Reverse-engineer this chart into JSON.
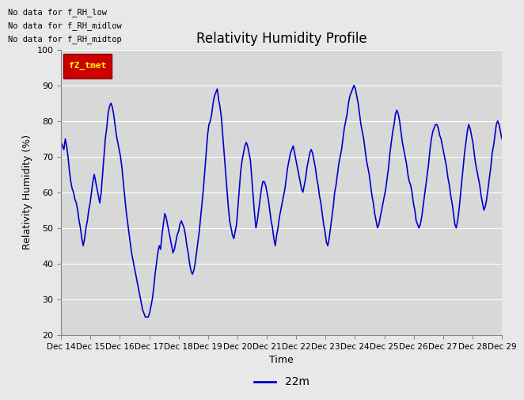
{
  "title": "Relativity Humidity Profile",
  "xlabel": "Time",
  "ylabel": "Relativity Humidity (%)",
  "ylim": [
    20,
    100
  ],
  "yticks": [
    20,
    30,
    40,
    50,
    60,
    70,
    80,
    90,
    100
  ],
  "legend_label": "22m",
  "legend_color": "#0000cc",
  "line_color": "#0000cc",
  "line_width": 1.2,
  "fig_bg_color": "#e8e8e8",
  "plot_bg_color": "#d8d8d8",
  "annotations": [
    "No data for f_RH_low",
    "No data for f_RH_midlow",
    "No data for f_RH_midtop"
  ],
  "legend_box_color": "#cc0000",
  "legend_box_text": "fZ_tmet",
  "x_tick_labels": [
    "Dec 14",
    "Dec 15",
    "Dec 16",
    "Dec 17",
    "Dec 18",
    "Dec 19",
    "Dec 20",
    "Dec 21",
    "Dec 22",
    "Dec 23",
    "Dec 24",
    "Dec 25",
    "Dec 26",
    "Dec 27",
    "Dec 28",
    "Dec 29"
  ],
  "humidity_data": [
    74,
    73,
    72,
    75,
    73,
    70,
    66,
    63,
    61,
    60,
    58,
    57,
    55,
    52,
    50,
    47,
    45,
    47,
    50,
    52,
    55,
    57,
    60,
    63,
    65,
    63,
    61,
    59,
    57,
    60,
    65,
    70,
    75,
    78,
    82,
    84,
    85,
    84,
    82,
    79,
    76,
    74,
    72,
    70,
    67,
    63,
    59,
    55,
    52,
    49,
    46,
    43,
    41,
    39,
    37,
    35,
    33,
    31,
    29,
    27,
    26,
    25,
    25,
    25,
    26,
    28,
    30,
    33,
    37,
    40,
    43,
    45,
    44,
    48,
    51,
    54,
    53,
    51,
    49,
    47,
    45,
    43,
    44,
    46,
    48,
    49,
    51,
    52,
    51,
    50,
    48,
    45,
    43,
    40,
    38,
    37,
    38,
    40,
    43,
    46,
    49,
    53,
    57,
    61,
    66,
    71,
    76,
    79,
    80,
    82,
    85,
    87,
    88,
    89,
    86,
    84,
    81,
    76,
    71,
    66,
    61,
    56,
    52,
    50,
    48,
    47,
    49,
    51,
    56,
    61,
    66,
    69,
    71,
    73,
    74,
    73,
    71,
    69,
    64,
    59,
    54,
    50,
    52,
    55,
    58,
    61,
    63,
    63,
    62,
    60,
    58,
    55,
    52,
    50,
    47,
    45,
    48,
    50,
    53,
    55,
    57,
    59,
    61,
    64,
    67,
    69,
    71,
    72,
    73,
    71,
    69,
    67,
    65,
    63,
    61,
    60,
    62,
    64,
    67,
    69,
    71,
    72,
    71,
    69,
    67,
    64,
    62,
    59,
    57,
    54,
    51,
    49,
    46,
    45,
    47,
    50,
    53,
    56,
    60,
    62,
    65,
    68,
    70,
    72,
    75,
    78,
    80,
    82,
    85,
    87,
    88,
    89,
    90,
    89,
    87,
    85,
    82,
    79,
    77,
    75,
    72,
    69,
    67,
    65,
    62,
    59,
    57,
    54,
    52,
    50,
    51,
    53,
    55,
    57,
    59,
    61,
    64,
    67,
    71,
    74,
    77,
    79,
    82,
    83,
    82,
    80,
    77,
    74,
    72,
    70,
    68,
    65,
    63,
    62,
    60,
    57,
    55,
    52,
    51,
    50,
    51,
    53,
    56,
    59,
    62,
    65,
    68,
    72,
    75,
    77,
    78,
    79,
    79,
    78,
    76,
    75,
    73,
    71,
    69,
    67,
    64,
    62,
    59,
    57,
    54,
    51,
    50,
    52,
    55,
    59,
    63,
    67,
    71,
    74,
    77,
    79,
    78,
    76,
    74,
    71,
    68,
    66,
    64,
    62,
    59,
    57,
    55,
    56,
    58,
    61,
    64,
    67,
    71,
    73,
    76,
    79,
    80,
    79,
    77,
    75
  ]
}
